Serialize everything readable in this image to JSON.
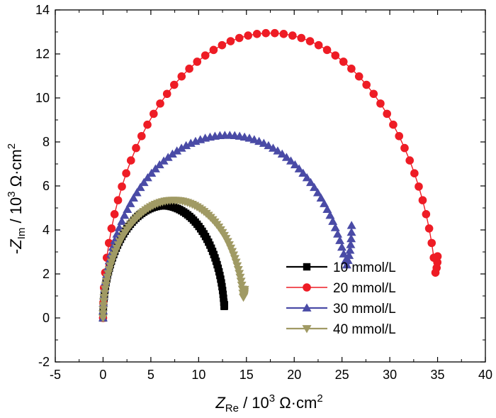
{
  "chart_data": {
    "type": "scatter",
    "title": "",
    "xlabel": {
      "main": "Z",
      "sub": "Re",
      "rest": " / 10",
      "sup": "3",
      "unit": " Ω·cm",
      "unit_sup": "2"
    },
    "ylabel": {
      "prefix": "-",
      "main": "Z",
      "sub": "Im",
      "rest": " / 10",
      "sup": "3",
      "unit": " Ω·cm",
      "unit_sup": "2"
    },
    "xlim": [
      -5,
      40
    ],
    "ylim": [
      -2,
      14
    ],
    "xticks": [
      "-5",
      "0",
      "5",
      "10",
      "15",
      "20",
      "25",
      "30",
      "35",
      "40"
    ],
    "yticks": [
      "-2",
      "0",
      "2",
      "4",
      "6",
      "8",
      "10",
      "12",
      "14"
    ],
    "grid": false,
    "legend_position": "lower-right",
    "series": [
      {
        "name": "10 mmol/L",
        "color": "#000000",
        "marker": "square",
        "line": false,
        "arc": {
          "r0": 0.0,
          "r1": 12.7,
          "peak": 5.1,
          "start_y": 0.0,
          "end_y": 0.6,
          "count": 90
        }
      },
      {
        "name": "20 mmol/L",
        "color": "#ee1c25",
        "marker": "circle",
        "line": true,
        "arc": {
          "r0": 0.0,
          "r1": 35.0,
          "peak": 12.95,
          "start_y": 0.0,
          "end_y": 2.8,
          "count": 60
        }
      },
      {
        "name": "30 mmol/L",
        "color": "#4a4ba6",
        "marker": "triangle-up",
        "line": false,
        "arc": {
          "r0": 0.0,
          "r1": 26.0,
          "peak": 8.3,
          "start_y": 0.0,
          "end_y": 4.2,
          "count": 80
        }
      },
      {
        "name": "40 mmol/L",
        "color": "#a09a64",
        "marker": "triangle-down",
        "line": false,
        "arc": {
          "r0": 0.0,
          "r1": 14.8,
          "peak": 5.35,
          "start_y": 0.0,
          "end_y": 1.3,
          "count": 90
        }
      }
    ]
  }
}
